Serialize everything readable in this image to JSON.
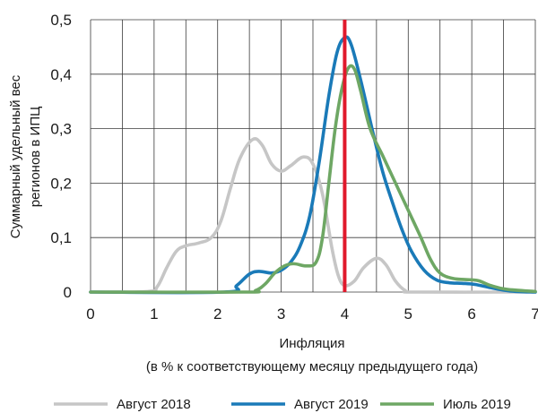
{
  "chart_data": {
    "type": "line",
    "title": "",
    "xlabel": "Инфляция",
    "xlabel_sub": "(в % к соответствующему месяцу предыдущего года)",
    "ylabel_line1": "Суммарный удельный вес",
    "ylabel_line2": "регионов в ИПЦ",
    "xlim": [
      0,
      7
    ],
    "ylim": [
      0,
      0.5
    ],
    "x_ticks": [
      0,
      1,
      2,
      3,
      4,
      5,
      6,
      7
    ],
    "x_tick_labels": [
      "0",
      "1",
      "2",
      "3",
      "4",
      "5",
      "6",
      "7"
    ],
    "y_ticks": [
      0,
      0.1,
      0.2,
      0.3,
      0.4,
      0.5
    ],
    "y_tick_labels": [
      "0",
      "0,1",
      "0,2",
      "0,3",
      "0,4",
      "0,5"
    ],
    "grid": true,
    "x_minor_grid_step": 0.5,
    "legend_position": "bottom",
    "reference_line": {
      "x": 4.0,
      "color": "#e0192c"
    },
    "series": [
      {
        "name": "Август 2018",
        "color": "#c6c6c6",
        "points": [
          [
            0,
            0
          ],
          [
            0.9,
            0.001
          ],
          [
            1.05,
            0.01
          ],
          [
            1.2,
            0.045
          ],
          [
            1.35,
            0.075
          ],
          [
            1.5,
            0.085
          ],
          [
            1.7,
            0.09
          ],
          [
            1.9,
            0.1
          ],
          [
            2.05,
            0.13
          ],
          [
            2.2,
            0.19
          ],
          [
            2.35,
            0.245
          ],
          [
            2.55,
            0.28
          ],
          [
            2.7,
            0.27
          ],
          [
            2.85,
            0.235
          ],
          [
            3.0,
            0.222
          ],
          [
            3.15,
            0.232
          ],
          [
            3.35,
            0.248
          ],
          [
            3.5,
            0.235
          ],
          [
            3.65,
            0.18
          ],
          [
            3.8,
            0.08
          ],
          [
            3.9,
            0.03
          ],
          [
            4.0,
            0.012
          ],
          [
            4.15,
            0.02
          ],
          [
            4.3,
            0.045
          ],
          [
            4.5,
            0.062
          ],
          [
            4.65,
            0.05
          ],
          [
            4.8,
            0.02
          ],
          [
            4.95,
            0.003
          ],
          [
            5.1,
            0
          ],
          [
            6.6,
            0
          ],
          [
            7.0,
            0
          ]
        ]
      },
      {
        "name": "Август 2019",
        "color": "#1a7ab8",
        "points": [
          [
            0,
            0
          ],
          [
            2.1,
            0
          ],
          [
            2.3,
            0.012
          ],
          [
            2.5,
            0.033
          ],
          [
            2.65,
            0.038
          ],
          [
            2.85,
            0.035
          ],
          [
            3.0,
            0.04
          ],
          [
            3.15,
            0.055
          ],
          [
            3.3,
            0.085
          ],
          [
            3.45,
            0.14
          ],
          [
            3.6,
            0.24
          ],
          [
            3.75,
            0.36
          ],
          [
            3.88,
            0.44
          ],
          [
            4.0,
            0.467
          ],
          [
            4.1,
            0.455
          ],
          [
            4.25,
            0.39
          ],
          [
            4.45,
            0.29
          ],
          [
            4.6,
            0.22
          ],
          [
            4.75,
            0.165
          ],
          [
            4.9,
            0.115
          ],
          [
            5.05,
            0.075
          ],
          [
            5.25,
            0.04
          ],
          [
            5.45,
            0.022
          ],
          [
            5.65,
            0.017
          ],
          [
            5.85,
            0.016
          ],
          [
            6.05,
            0.014
          ],
          [
            6.3,
            0.008
          ],
          [
            6.6,
            0.002
          ],
          [
            7.0,
            0
          ]
        ]
      },
      {
        "name": "Июль 2019",
        "color": "#6ea764",
        "points": [
          [
            0,
            0
          ],
          [
            2.4,
            0
          ],
          [
            2.6,
            0.003
          ],
          [
            2.75,
            0.015
          ],
          [
            2.9,
            0.035
          ],
          [
            3.05,
            0.048
          ],
          [
            3.2,
            0.052
          ],
          [
            3.4,
            0.048
          ],
          [
            3.55,
            0.055
          ],
          [
            3.65,
            0.1
          ],
          [
            3.75,
            0.2
          ],
          [
            3.85,
            0.3
          ],
          [
            3.95,
            0.37
          ],
          [
            4.05,
            0.41
          ],
          [
            4.15,
            0.41
          ],
          [
            4.25,
            0.37
          ],
          [
            4.4,
            0.3
          ],
          [
            4.6,
            0.25
          ],
          [
            4.8,
            0.2
          ],
          [
            5.0,
            0.15
          ],
          [
            5.2,
            0.1
          ],
          [
            5.35,
            0.06
          ],
          [
            5.5,
            0.035
          ],
          [
            5.7,
            0.025
          ],
          [
            5.9,
            0.023
          ],
          [
            6.1,
            0.021
          ],
          [
            6.3,
            0.012
          ],
          [
            6.55,
            0.005
          ],
          [
            7.0,
            0.001
          ]
        ]
      }
    ]
  }
}
